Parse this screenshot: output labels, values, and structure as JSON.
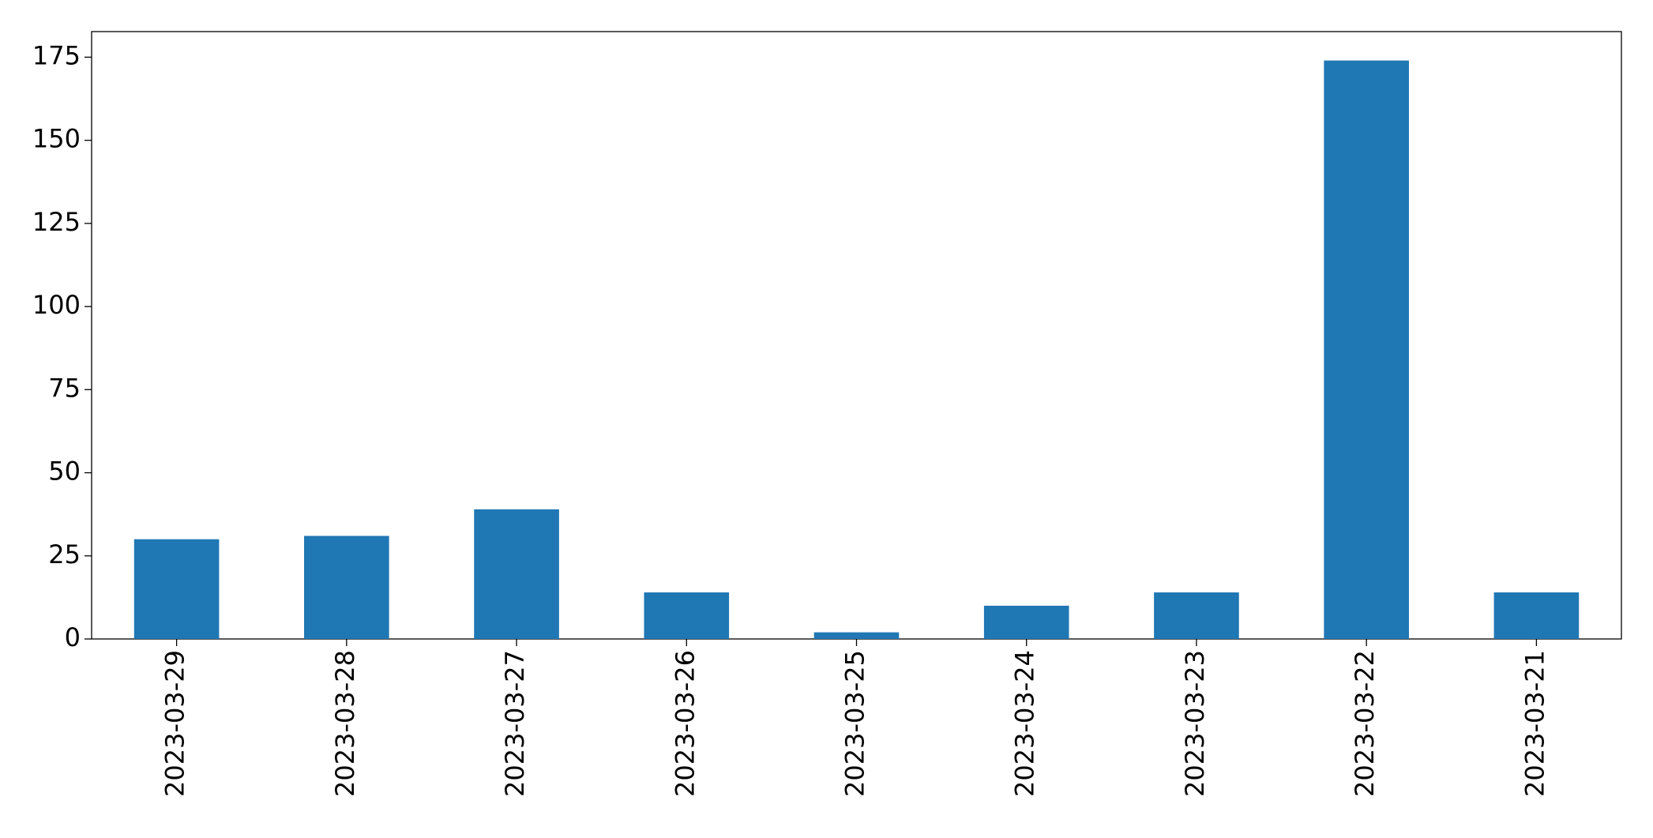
{
  "chart_data": {
    "type": "bar",
    "categories": [
      "2023-03-29",
      "2023-03-28",
      "2023-03-27",
      "2023-03-26",
      "2023-03-25",
      "2023-03-24",
      "2023-03-23",
      "2023-03-22",
      "2023-03-21"
    ],
    "values": [
      30,
      31,
      39,
      14,
      2,
      10,
      14,
      174,
      14
    ],
    "color": "#1f77b4",
    "ylim": [
      0,
      182.7
    ],
    "yticks": [
      0,
      25,
      50,
      75,
      100,
      125,
      150,
      175
    ],
    "grid": false
  }
}
